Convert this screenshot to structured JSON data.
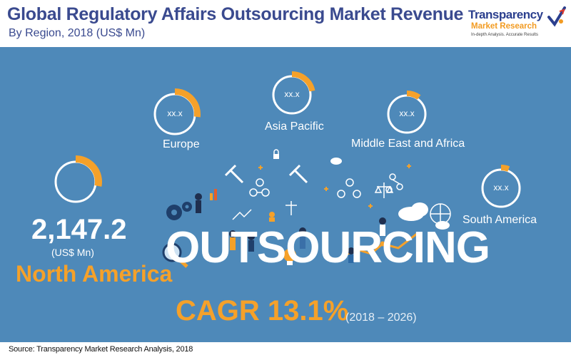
{
  "header": {
    "title": "Global Regulatory Affairs Outsourcing Market Revenue",
    "subtitle": "By Region, 2018 (US$ Mn)"
  },
  "logo": {
    "line1": "Transparency",
    "line2": "Market Research",
    "tagline": "In-depth Analysis. Accurate Results"
  },
  "colors": {
    "background": "#4e89b9",
    "accent": "#f5a12a",
    "title": "#3a4a8f",
    "ring": "#ffffff"
  },
  "chart_data": {
    "type": "pie",
    "regions": [
      {
        "name": "North America",
        "value": 2147.2,
        "display": "2,147.2",
        "unit": "(US$ Mn)",
        "arc_fraction": 0.28
      },
      {
        "name": "Europe",
        "display": "xx.x",
        "arc_fraction": 0.27
      },
      {
        "name": "Asia Pacific",
        "display": "xx.x",
        "arc_fraction": 0.22
      },
      {
        "name": "Middle East and Africa",
        "display": "xx.x",
        "arc_fraction": 0.1
      },
      {
        "name": "South America",
        "display": "xx.x",
        "arc_fraction": 0.06
      }
    ],
    "cagr": "CAGR 13.1%",
    "cagr_period": "(2018 – 2026)"
  },
  "illustration": {
    "word": "OUTSOURCING"
  },
  "footer": {
    "source": "Source: Transparency Market Research Analysis, 2018"
  }
}
